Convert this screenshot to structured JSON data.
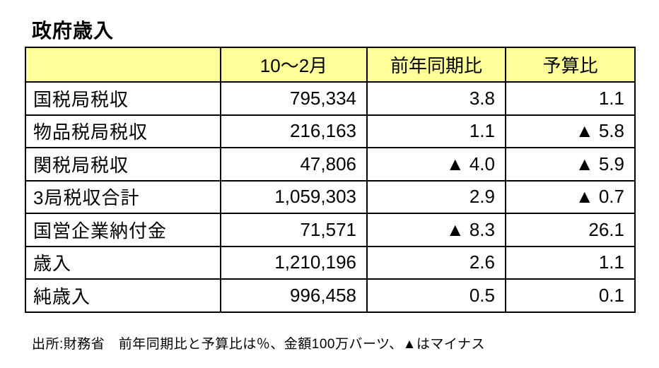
{
  "title": "政府歳入",
  "table": {
    "headers": [
      "",
      "10～2月",
      "前年同期比",
      "予算比"
    ],
    "rows": [
      [
        "国税局税収",
        "795,334",
        "3.8",
        "1.1"
      ],
      [
        "物品税局税収",
        "216,163",
        "1.1",
        "▲ 5.8"
      ],
      [
        "関税局税収",
        "47,806",
        "▲ 4.0",
        "▲ 5.9"
      ],
      [
        "3局税収合計",
        "1,059,303",
        "2.9",
        "▲ 0.7"
      ],
      [
        "国営企業納付金",
        "71,571",
        "▲ 8.3",
        "26.1"
      ],
      [
        "歳入",
        "1,210,196",
        "2.6",
        "1.1"
      ],
      [
        "純歳入",
        "996,458",
        "0.5",
        "0.1"
      ]
    ]
  },
  "footnote": "出所:財務省　前年同期比と予算比は％、金額100万バーツ、▲はマイナス",
  "colors": {
    "header_background": "#FFFF99",
    "border": "#000000",
    "text": "#000000",
    "page_background": "#FFFFFF"
  }
}
